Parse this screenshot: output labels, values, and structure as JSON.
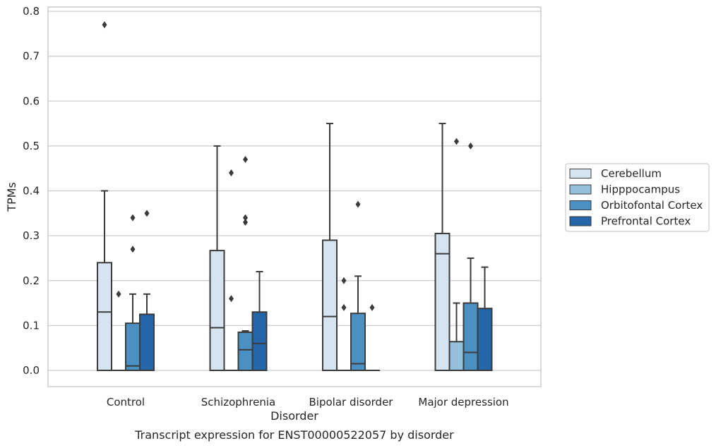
{
  "chart_data": {
    "type": "box",
    "title": "",
    "caption": "Transcript expression for ENST00000522057 by disorder",
    "xlabel": "Disorder",
    "ylabel": "TPMs",
    "ylim": [
      -0.038,
      0.812
    ],
    "yticks": [
      "0.0",
      "0.1",
      "0.2",
      "0.3",
      "0.4",
      "0.5",
      "0.6",
      "0.7",
      "0.8"
    ],
    "grid": "horizontal",
    "legend_position": "right",
    "categories": [
      "Control",
      "Schizophrenia",
      "Bipolar disorder",
      "Major depression"
    ],
    "series": [
      {
        "name": "Cerebellum",
        "color": "#d6e4f2",
        "boxes": [
          {
            "q1": 0,
            "median": 0.13,
            "q3": 0.24,
            "whisker_low": 0,
            "whisker_high": 0.4,
            "outliers": [
              0.77
            ]
          },
          {
            "q1": 0,
            "median": 0.095,
            "q3": 0.267,
            "whisker_low": 0,
            "whisker_high": 0.5,
            "outliers": []
          },
          {
            "q1": 0,
            "median": 0.12,
            "q3": 0.29,
            "whisker_low": 0,
            "whisker_high": 0.55,
            "outliers": []
          },
          {
            "q1": 0,
            "median": 0.26,
            "q3": 0.305,
            "whisker_low": 0,
            "whisker_high": 0.55,
            "outliers": []
          }
        ]
      },
      {
        "name": "Hipppocampus",
        "color": "#94c0db",
        "boxes": [
          {
            "q1": 0,
            "median": 0,
            "q3": 0,
            "whisker_low": 0,
            "whisker_high": 0,
            "outliers": [
              0.17
            ]
          },
          {
            "q1": 0,
            "median": 0,
            "q3": 0,
            "whisker_low": 0,
            "whisker_high": 0,
            "outliers": [
              0.16,
              0.44
            ]
          },
          {
            "q1": 0,
            "median": 0,
            "q3": 0,
            "whisker_low": 0,
            "whisker_high": 0,
            "outliers": [
              0.14,
              0.2
            ]
          },
          {
            "q1": 0,
            "median": 0,
            "q3": 0.064,
            "whisker_low": 0,
            "whisker_high": 0.15,
            "outliers": [
              0.51
            ]
          }
        ]
      },
      {
        "name": "Orbitofontal Cortex",
        "color": "#4a90c2",
        "boxes": [
          {
            "q1": 0,
            "median": 0.01,
            "q3": 0.105,
            "whisker_low": 0,
            "whisker_high": 0.17,
            "outliers": [
              0.27,
              0.34
            ]
          },
          {
            "q1": 0,
            "median": 0.046,
            "q3": 0.085,
            "whisker_low": 0,
            "whisker_high": 0.088,
            "outliers": [
              0.33,
              0.34,
              0.47
            ]
          },
          {
            "q1": 0,
            "median": 0.015,
            "q3": 0.127,
            "whisker_low": 0,
            "whisker_high": 0.21,
            "outliers": [
              0.37
            ]
          },
          {
            "q1": 0,
            "median": 0.04,
            "q3": 0.15,
            "whisker_low": 0,
            "whisker_high": 0.25,
            "outliers": [
              0.5
            ]
          }
        ]
      },
      {
        "name": "Prefrontal Cortex",
        "color": "#2566a8",
        "boxes": [
          {
            "q1": 0,
            "median": 0,
            "q3": 0.125,
            "whisker_low": 0,
            "whisker_high": 0.17,
            "outliers": [
              0.35
            ]
          },
          {
            "q1": 0,
            "median": 0.06,
            "q3": 0.13,
            "whisker_low": 0,
            "whisker_high": 0.22,
            "outliers": []
          },
          {
            "q1": 0,
            "median": 0,
            "q3": 0,
            "whisker_low": 0,
            "whisker_high": 0,
            "outliers": [
              0.14
            ]
          },
          {
            "q1": 0,
            "median": 0,
            "q3": 0.138,
            "whisker_low": 0,
            "whisker_high": 0.23,
            "outliers": []
          }
        ]
      }
    ]
  }
}
